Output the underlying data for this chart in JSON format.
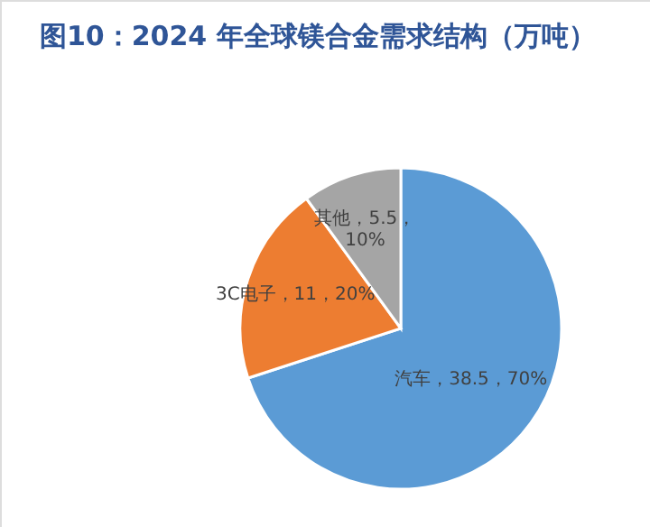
{
  "chart_data": {
    "type": "pie",
    "title": "图10：2024 年全球镁合金需求结构（万吨）",
    "categories": [
      "汽车",
      "3C电子",
      "其他"
    ],
    "values": [
      38.5,
      11,
      5.5
    ],
    "colors": [
      "#5b9bd5",
      "#ed7d31",
      "#a5a5a5"
    ],
    "value_labels": [
      "38.5，70%",
      "11，20%",
      "5.5，\n10%"
    ]
  }
}
